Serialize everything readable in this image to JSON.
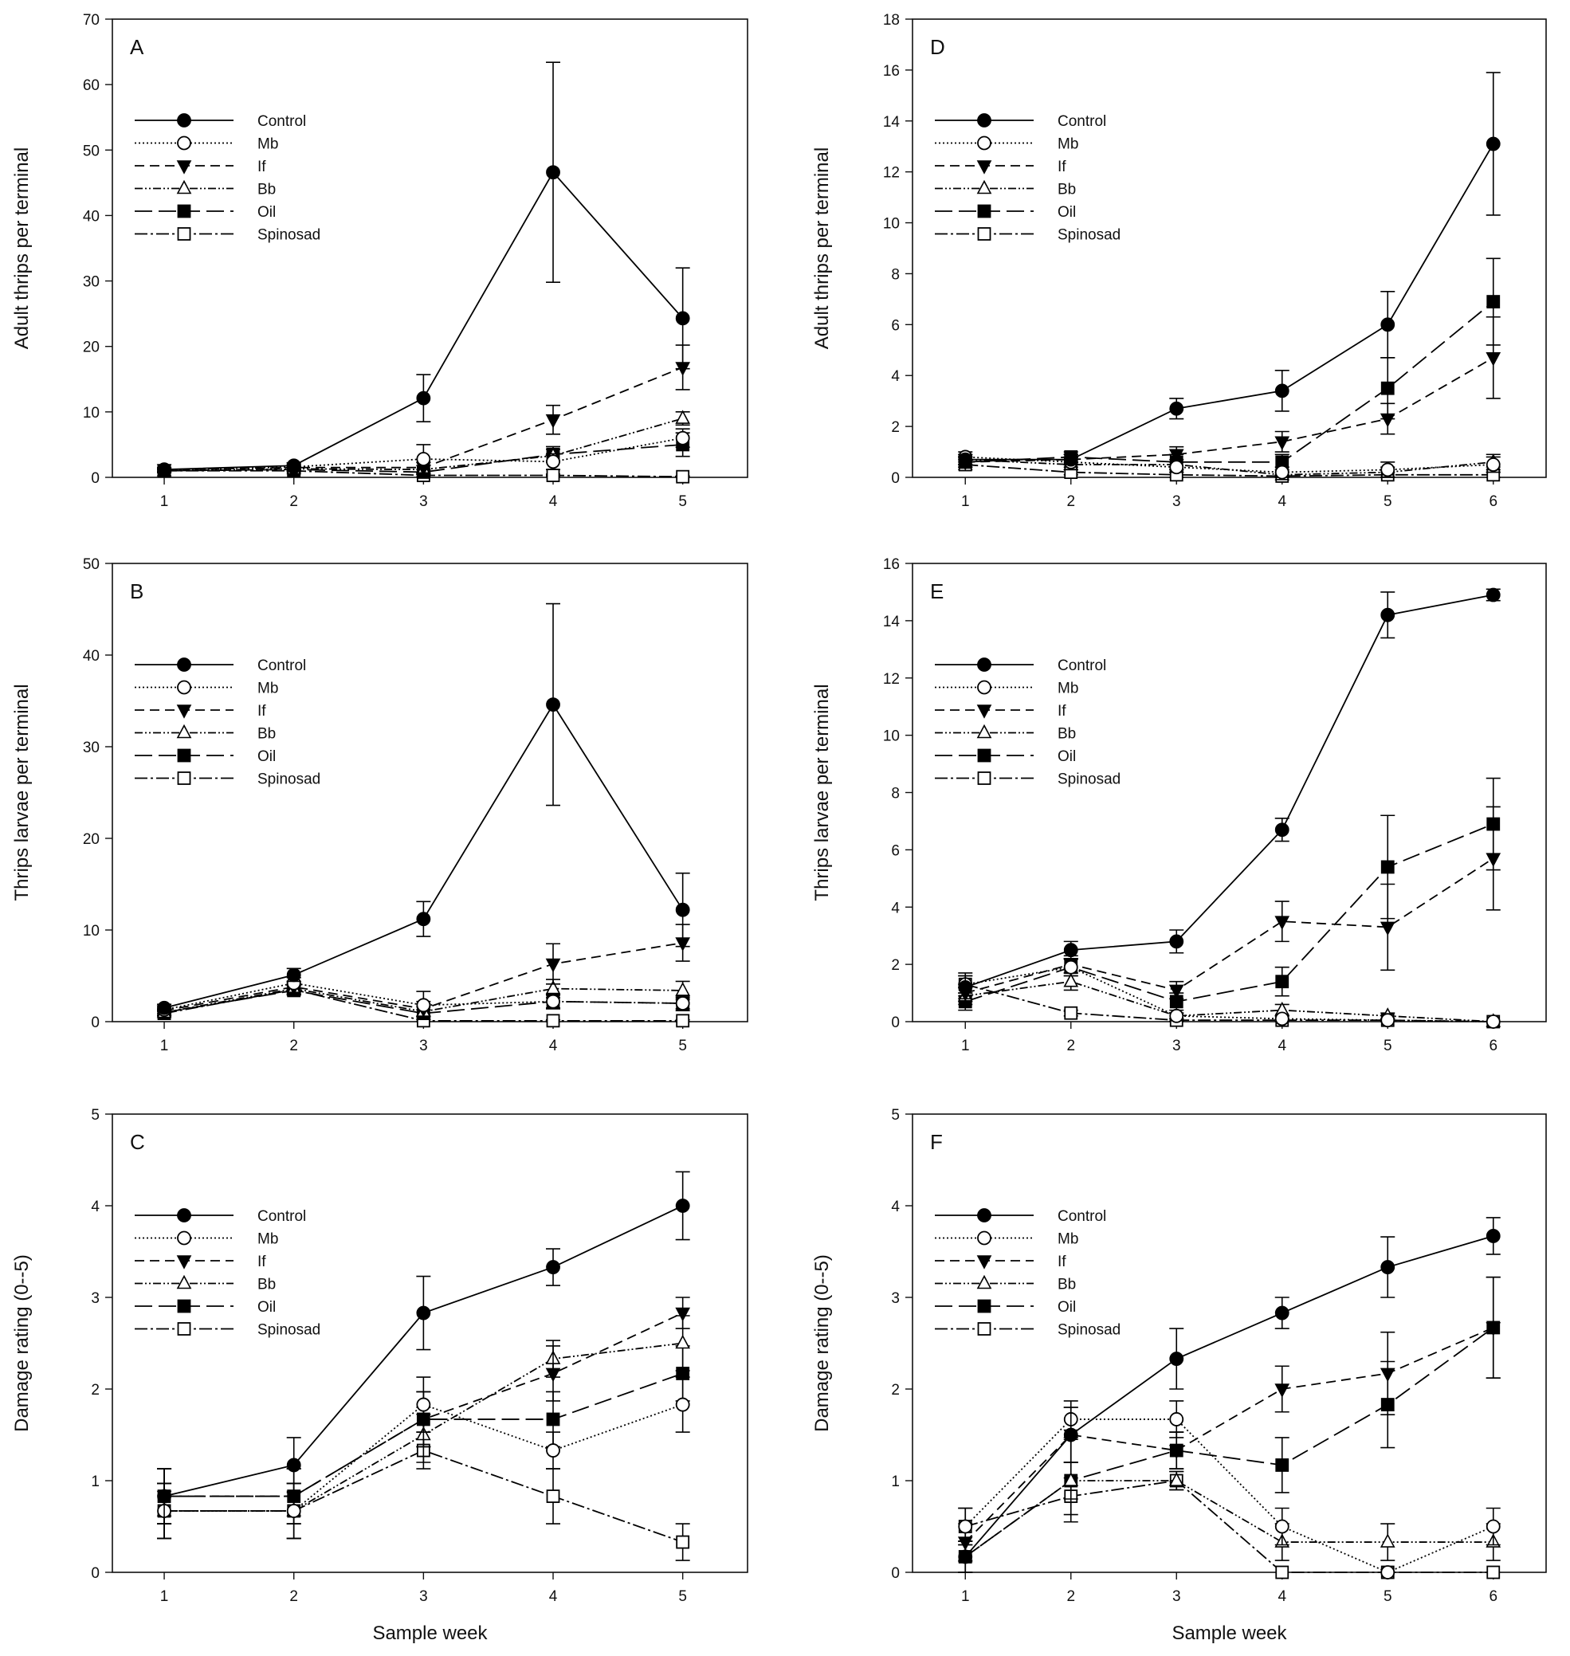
{
  "legend": [
    "Control",
    "Mb",
    "If",
    "Bb",
    "Oil",
    "Spinosad"
  ],
  "treatments": [
    {
      "name": "Control",
      "dash": "",
      "marker": "circle",
      "fill": "#000000"
    },
    {
      "name": "Mb",
      "dash": "2 3",
      "marker": "circle",
      "fill": "#ffffff"
    },
    {
      "name": "If",
      "dash": "12 7",
      "marker": "triangle-down",
      "fill": "#000000"
    },
    {
      "name": "Bb",
      "dash": "10 3 2 3 2 3",
      "marker": "triangle-up",
      "fill": "#ffffff"
    },
    {
      "name": "Oil",
      "dash": "22 8",
      "marker": "square",
      "fill": "#000000"
    },
    {
      "name": "Spinosad",
      "dash": "16 4 3 4",
      "marker": "square",
      "fill": "#ffffff"
    }
  ],
  "chart_data": [
    {
      "panel": "A",
      "type": "line",
      "ylabel": "Adult thrips per terminal",
      "xlabel": "",
      "x": [
        1,
        2,
        3,
        4,
        5
      ],
      "xlim": [
        0.6,
        5.5
      ],
      "ylim": [
        0,
        70
      ],
      "yticks": [
        0,
        10,
        20,
        30,
        40,
        50,
        60,
        70
      ],
      "xticks": [
        "1",
        "2",
        "3",
        "4",
        "5"
      ],
      "series": [
        {
          "name": "Control",
          "values": [
            1.2,
            1.8,
            12.1,
            46.6,
            24.3
          ],
          "err": [
            0.3,
            0.4,
            3.6,
            16.8,
            7.7
          ]
        },
        {
          "name": "Mb",
          "values": [
            1.1,
            1.6,
            2.8,
            2.4,
            6.0
          ],
          "err": [
            0.3,
            0.4,
            2.2,
            1.2,
            1.4
          ]
        },
        {
          "name": "If",
          "values": [
            1.2,
            1.5,
            1.5,
            8.8,
            16.8
          ],
          "err": [
            0.3,
            0.4,
            0.8,
            2.2,
            3.4
          ]
        },
        {
          "name": "Bb",
          "values": [
            1.0,
            1.3,
            1.2,
            3.3,
            9.0
          ],
          "err": [
            0.3,
            0.3,
            0.6,
            1.0,
            1.0
          ]
        },
        {
          "name": "Oil",
          "values": [
            1.0,
            1.2,
            0.8,
            3.5,
            5.0
          ],
          "err": [
            0.3,
            0.3,
            0.4,
            1.2,
            1.8
          ]
        },
        {
          "name": "Spinosad",
          "values": [
            1.0,
            1.0,
            0.3,
            0.3,
            0.1
          ],
          "err": [
            0.2,
            0.2,
            0.2,
            0.2,
            0.1
          ]
        }
      ]
    },
    {
      "panel": "B",
      "type": "line",
      "ylabel": "Thrips larvae per terminal",
      "xlabel": "",
      "x": [
        1,
        2,
        3,
        4,
        5
      ],
      "xlim": [
        0.6,
        5.5
      ],
      "ylim": [
        0,
        50
      ],
      "yticks": [
        0,
        10,
        20,
        30,
        40,
        50
      ],
      "xticks": [
        "1",
        "2",
        "3",
        "4",
        "5"
      ],
      "series": [
        {
          "name": "Control",
          "values": [
            1.5,
            5.1,
            11.2,
            34.6,
            12.2
          ],
          "err": [
            0.4,
            0.7,
            1.9,
            11.0,
            4.0
          ]
        },
        {
          "name": "Mb",
          "values": [
            1.3,
            4.2,
            1.8,
            2.2,
            2.0
          ],
          "err": [
            0.4,
            0.6,
            1.5,
            0.8,
            0.6
          ]
        },
        {
          "name": "If",
          "values": [
            1.2,
            3.8,
            1.4,
            6.3,
            8.6
          ],
          "err": [
            0.3,
            0.6,
            0.8,
            2.2,
            2.0
          ]
        },
        {
          "name": "Bb",
          "values": [
            1.0,
            3.6,
            1.1,
            3.6,
            3.4
          ],
          "err": [
            0.3,
            0.6,
            0.5,
            1.0,
            1.0
          ]
        },
        {
          "name": "Oil",
          "values": [
            1.0,
            3.4,
            0.9,
            2.2,
            2.0
          ],
          "err": [
            0.3,
            0.5,
            0.4,
            0.7,
            0.8
          ]
        },
        {
          "name": "Spinosad",
          "values": [
            0.9,
            3.5,
            0.1,
            0.1,
            0.1
          ],
          "err": [
            0.3,
            0.5,
            0.1,
            0.1,
            0.1
          ]
        }
      ]
    },
    {
      "panel": "C",
      "type": "line",
      "ylabel": "Damage rating (0--5)",
      "xlabel": "Sample week",
      "x": [
        1,
        2,
        3,
        4,
        5
      ],
      "xlim": [
        0.6,
        5.5
      ],
      "ylim": [
        0,
        5
      ],
      "yticks": [
        0,
        1,
        2,
        3,
        4,
        5
      ],
      "xticks": [
        "1",
        "2",
        "3",
        "4",
        "5"
      ],
      "series": [
        {
          "name": "Control",
          "values": [
            0.83,
            1.17,
            2.83,
            3.33,
            4.0
          ],
          "err": [
            0.3,
            0.3,
            0.4,
            0.2,
            0.37
          ]
        },
        {
          "name": "Mb",
          "values": [
            0.67,
            0.67,
            1.83,
            1.33,
            1.83
          ],
          "err": [
            0.3,
            0.3,
            0.3,
            0.2,
            0.3
          ]
        },
        {
          "name": "If",
          "values": [
            0.83,
            0.83,
            1.67,
            2.17,
            2.83
          ],
          "err": [
            0.3,
            0.3,
            0.3,
            0.3,
            0.17
          ]
        },
        {
          "name": "Bb",
          "values": [
            0.67,
            0.67,
            1.5,
            2.33,
            2.5
          ],
          "err": [
            0.3,
            0.3,
            0.3,
            0.2,
            0.3
          ]
        },
        {
          "name": "Oil",
          "values": [
            0.83,
            0.83,
            1.67,
            1.67,
            2.17
          ],
          "err": [
            0.3,
            0.3,
            0.3,
            0.3,
            0.3
          ]
        },
        {
          "name": "Spinosad",
          "values": [
            0.67,
            0.67,
            1.33,
            0.83,
            0.33
          ],
          "err": [
            0.3,
            0.3,
            0.2,
            0.3,
            0.2
          ]
        }
      ]
    },
    {
      "panel": "D",
      "type": "line",
      "ylabel": "Adult thrips per terminal",
      "xlabel": "",
      "x": [
        1,
        2,
        3,
        4,
        5,
        6
      ],
      "xlim": [
        0.5,
        6.5
      ],
      "ylim": [
        0,
        18
      ],
      "yticks": [
        0,
        2,
        4,
        6,
        8,
        10,
        12,
        14,
        16,
        18
      ],
      "xticks": [
        "1",
        "2",
        "3",
        "4",
        "5",
        "6"
      ],
      "series": [
        {
          "name": "Control",
          "values": [
            0.7,
            0.7,
            2.7,
            3.4,
            6.0,
            13.1
          ],
          "err": [
            0.2,
            0.2,
            0.4,
            0.8,
            1.3,
            2.8
          ]
        },
        {
          "name": "Mb",
          "values": [
            0.8,
            0.6,
            0.4,
            0.2,
            0.3,
            0.5
          ],
          "err": [
            0.2,
            0.2,
            0.2,
            0.2,
            0.3,
            0.3
          ]
        },
        {
          "name": "If",
          "values": [
            0.6,
            0.7,
            0.9,
            1.4,
            2.3,
            4.7
          ],
          "err": [
            0.2,
            0.2,
            0.3,
            0.4,
            0.6,
            1.6
          ]
        },
        {
          "name": "Bb",
          "values": [
            0.7,
            0.5,
            0.5,
            0.1,
            0.2,
            0.6
          ],
          "err": [
            0.2,
            0.2,
            0.2,
            0.1,
            0.2,
            0.3
          ]
        },
        {
          "name": "Oil",
          "values": [
            0.6,
            0.8,
            0.6,
            0.6,
            3.5,
            6.9
          ],
          "err": [
            0.2,
            0.2,
            0.3,
            0.3,
            1.2,
            1.7
          ]
        },
        {
          "name": "Spinosad",
          "values": [
            0.5,
            0.2,
            0.1,
            0.05,
            0.1,
            0.1
          ],
          "err": [
            0.2,
            0.1,
            0.1,
            0.05,
            0.1,
            0.1
          ]
        }
      ]
    },
    {
      "panel": "E",
      "type": "line",
      "ylabel": "Thrips larvae per terminal",
      "xlabel": "",
      "x": [
        1,
        2,
        3,
        4,
        5,
        6
      ],
      "xlim": [
        0.5,
        6.5
      ],
      "ylim": [
        0,
        16
      ],
      "yticks": [
        0,
        2,
        4,
        6,
        8,
        10,
        12,
        14,
        16
      ],
      "xticks": [
        "1",
        "2",
        "3",
        "4",
        "5",
        "6"
      ],
      "series": [
        {
          "name": "Control",
          "values": [
            1.2,
            2.5,
            2.8,
            6.7,
            14.2,
            14.9
          ],
          "err": [
            0.4,
            0.3,
            0.4,
            0.4,
            0.8,
            0.2
          ]
        },
        {
          "name": "Mb",
          "values": [
            1.3,
            1.9,
            0.2,
            0.1,
            0.05,
            0.0
          ],
          "err": [
            0.4,
            0.3,
            0.1,
            0.1,
            0.05,
            0.0
          ]
        },
        {
          "name": "If",
          "values": [
            1.0,
            2.0,
            1.1,
            3.5,
            3.3,
            5.7
          ],
          "err": [
            0.3,
            0.3,
            0.3,
            0.7,
            1.5,
            1.8
          ]
        },
        {
          "name": "Bb",
          "values": [
            0.9,
            1.4,
            0.2,
            0.4,
            0.2,
            0.0
          ],
          "err": [
            0.3,
            0.3,
            0.1,
            0.2,
            0.1,
            0.0
          ]
        },
        {
          "name": "Oil",
          "values": [
            0.7,
            1.9,
            0.7,
            1.4,
            5.4,
            6.9
          ],
          "err": [
            0.3,
            0.3,
            0.3,
            0.5,
            1.8,
            1.6
          ]
        },
        {
          "name": "Spinosad",
          "values": [
            1.3,
            0.3,
            0.05,
            0.05,
            0.05,
            0.0
          ],
          "err": [
            0.3,
            0.1,
            0.05,
            0.05,
            0.05,
            0.0
          ]
        }
      ]
    },
    {
      "panel": "F",
      "type": "line",
      "ylabel": "Damage rating (0--5)",
      "xlabel": "Sample week",
      "x": [
        1,
        2,
        3,
        4,
        5,
        6
      ],
      "xlim": [
        0.5,
        6.5
      ],
      "ylim": [
        0,
        5
      ],
      "yticks": [
        0,
        1,
        2,
        3,
        4,
        5
      ],
      "xticks": [
        "1",
        "2",
        "3",
        "4",
        "5",
        "6"
      ],
      "series": [
        {
          "name": "Control",
          "values": [
            0.17,
            1.5,
            2.33,
            2.83,
            3.33,
            3.67
          ],
          "err": [
            0.17,
            0.3,
            0.33,
            0.17,
            0.33,
            0.2
          ]
        },
        {
          "name": "Mb",
          "values": [
            0.5,
            1.67,
            1.67,
            0.5,
            0.0,
            0.5
          ],
          "err": [
            0.2,
            0.2,
            0.2,
            0.2,
            0.0,
            0.2
          ]
        },
        {
          "name": "If",
          "values": [
            0.33,
            1.5,
            1.33,
            2.0,
            2.17,
            2.67
          ],
          "err": [
            0.2,
            0.3,
            0.2,
            0.25,
            0.45,
            0.55
          ]
        },
        {
          "name": "Bb",
          "values": [
            0.17,
            1.0,
            1.0,
            0.33,
            0.33,
            0.33
          ],
          "err": [
            0.17,
            0.2,
            0.1,
            0.2,
            0.2,
            0.2
          ]
        },
        {
          "name": "Oil",
          "values": [
            0.17,
            1.0,
            1.33,
            1.17,
            1.83,
            2.67
          ],
          "err": [
            0.17,
            0.45,
            0.2,
            0.3,
            0.47,
            0.55
          ]
        },
        {
          "name": "Spinosad",
          "values": [
            0.5,
            0.83,
            1.0,
            0.0,
            0.0,
            0.0
          ],
          "err": [
            0.2,
            0.2,
            0.1,
            0.0,
            0.0,
            0.0
          ]
        }
      ]
    }
  ]
}
